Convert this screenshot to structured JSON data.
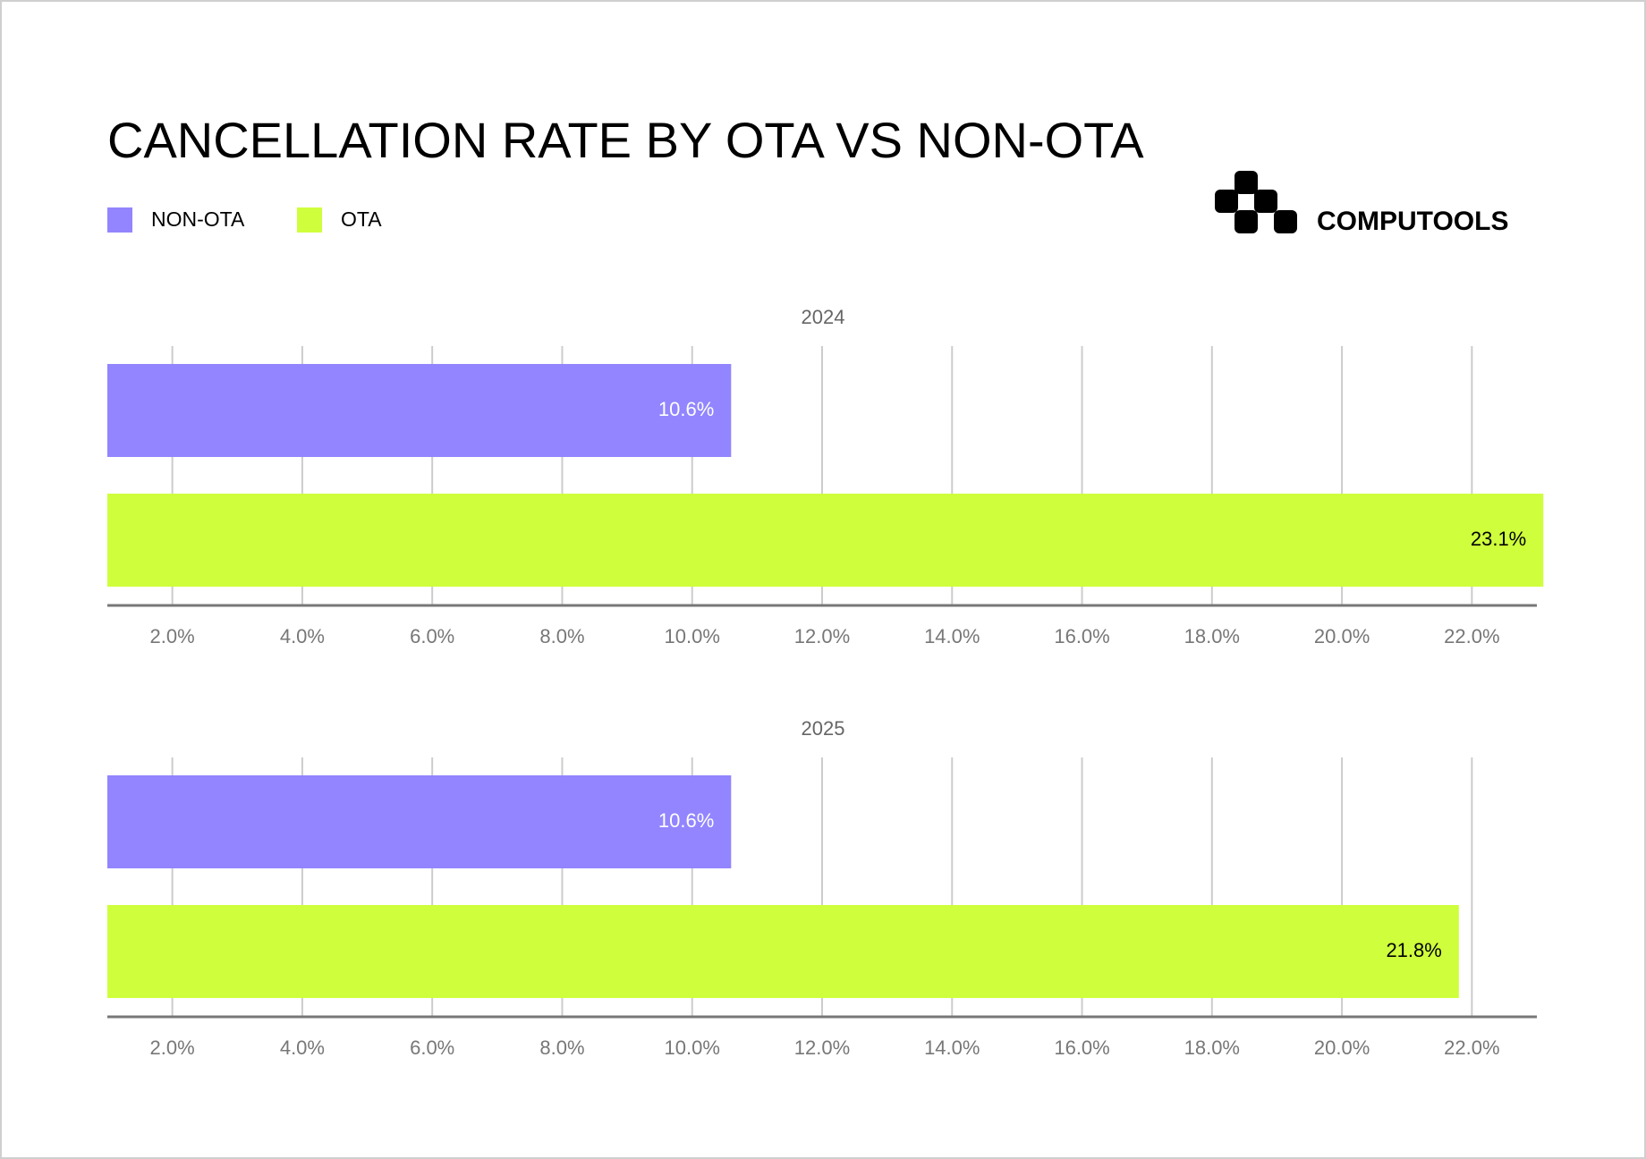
{
  "chart_data": {
    "type": "bar",
    "orientation": "horizontal",
    "title": "CANCELLATION RATE BY OTA VS NON-OTA",
    "brand": "COMPUTOOLS",
    "categories": [
      "2024",
      "2025"
    ],
    "series": [
      {
        "name": "NON-OTA",
        "color": "#9285ff",
        "label_color": "#ffffff",
        "values": [
          10.6,
          10.6
        ],
        "value_labels": [
          "10.6%",
          "10.6%"
        ]
      },
      {
        "name": "OTA",
        "color": "#cfff3c",
        "label_color": "#000000",
        "values": [
          23.1,
          21.8
        ],
        "value_labels": [
          "23.1%",
          "21.8%"
        ]
      }
    ],
    "xlim": [
      1,
      23
    ],
    "xticks": [
      {
        "value": 2,
        "label": "2.0%"
      },
      {
        "value": 4,
        "label": "4.0%"
      },
      {
        "value": 6,
        "label": "6.0%"
      },
      {
        "value": 8,
        "label": "8.0%"
      },
      {
        "value": 10,
        "label": "10.0%"
      },
      {
        "value": 12,
        "label": "12.0%"
      },
      {
        "value": 14,
        "label": "14.0%"
      },
      {
        "value": 16,
        "label": "16.0%"
      },
      {
        "value": 18,
        "label": "18.0%"
      },
      {
        "value": 20,
        "label": "20.0%"
      },
      {
        "value": 22,
        "label": "22.0%"
      }
    ],
    "grid": true
  }
}
